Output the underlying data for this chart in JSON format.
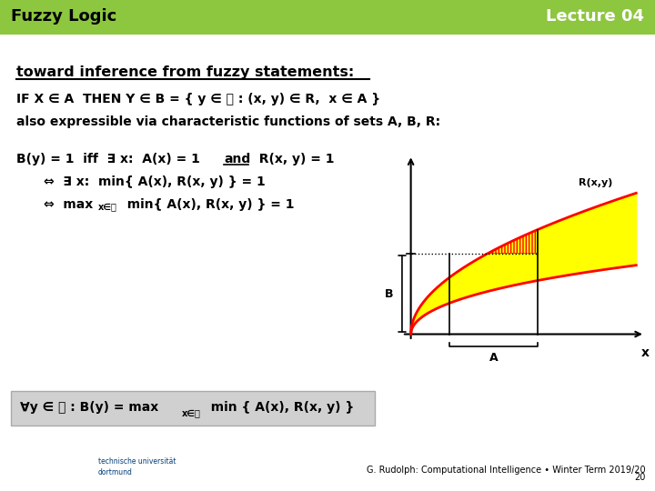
{
  "header_bg_color": "#8dc63f",
  "header_text_color": "#ffffff",
  "header_left": "Fuzzy Logic",
  "header_right": "Lecture 04",
  "title_line": "toward inference from fuzzy statements:",
  "line2": "also expressible via characteristic functions of sets A, B, R:",
  "footer_bg": "#d0d0d0",
  "body_bg": "#ffffff",
  "bottom_right": "G. Rudolph: Computational Intelligence • Winter Term 2019/20",
  "page_num": "20"
}
